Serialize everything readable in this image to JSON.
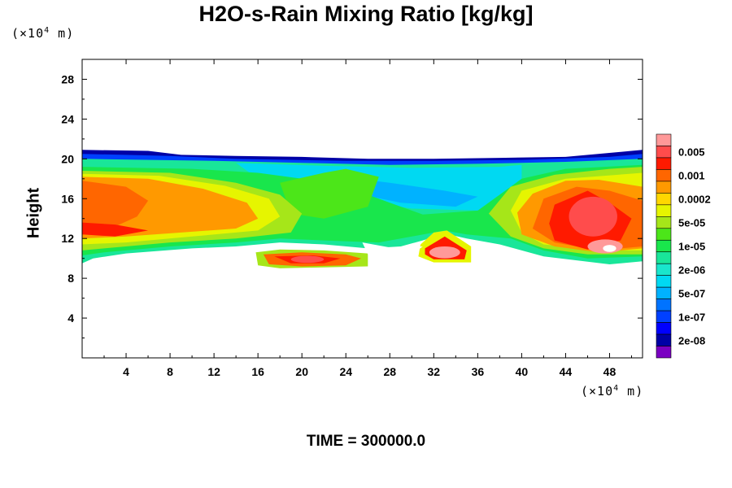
{
  "title": "H2O-s-Rain Mixing Ratio [kg/kg]",
  "footer": "TIME = 300000.0",
  "y_unit": {
    "prefix": "(×10",
    "exp": "4",
    "suffix": " m)"
  },
  "x_unit": {
    "prefix": "(×10",
    "exp": "4",
    "suffix": " m)"
  },
  "chart_data": {
    "type": "heatmap",
    "title": "H2O-s-Rain Mixing Ratio [kg/kg]",
    "xlabel": "",
    "ylabel": "Height",
    "x_unit": "×10^4 m",
    "y_unit": "×10^4 m",
    "xlim": [
      0,
      51
    ],
    "ylim": [
      0,
      30
    ],
    "x_ticks": [
      4,
      8,
      12,
      16,
      20,
      24,
      28,
      32,
      36,
      40,
      44,
      48
    ],
    "y_ticks": [
      4,
      8,
      12,
      16,
      20,
      24,
      28
    ],
    "colorbar": {
      "levels_top_to_bottom": [
        {
          "color": "#ff9999",
          "label": ""
        },
        {
          "color": "#ff4c4c",
          "label": "0.005"
        },
        {
          "color": "#ff1a00",
          "label": ""
        },
        {
          "color": "#ff6600",
          "label": "0.001"
        },
        {
          "color": "#ff9900",
          "label": ""
        },
        {
          "color": "#ffd700",
          "label": "0.0002"
        },
        {
          "color": "#e6f500",
          "label": ""
        },
        {
          "color": "#a6e619",
          "label": "5e-05"
        },
        {
          "color": "#4ce619",
          "label": ""
        },
        {
          "color": "#19e64c",
          "label": "1e-05"
        },
        {
          "color": "#19e699",
          "label": ""
        },
        {
          "color": "#19e6cc",
          "label": "2e-06"
        },
        {
          "color": "#00d9f2",
          "label": ""
        },
        {
          "color": "#00b2ff",
          "label": "5e-07"
        },
        {
          "color": "#0073ff",
          "label": ""
        },
        {
          "color": "#0040ff",
          "label": "1e-07"
        },
        {
          "color": "#0000ff",
          "label": ""
        },
        {
          "color": "#0000a6",
          "label": "2e-08"
        },
        {
          "color": "#7a00c2",
          "label": ""
        }
      ]
    },
    "regions": [
      {
        "name": "cloud layer",
        "x_range": [
          0,
          51
        ],
        "y_range": [
          9.5,
          21
        ],
        "dominant": "2e-06 to 0.005"
      },
      {
        "name": "left core",
        "x_range": [
          0,
          14
        ],
        "y_range": [
          10,
          19
        ],
        "dominant": "0.0002 to 0.001"
      },
      {
        "name": "right core",
        "x_range": [
          38,
          51
        ],
        "y_range": [
          9,
          19
        ],
        "dominant": "0.001 to 0.005"
      },
      {
        "name": "lower band",
        "x_range": [
          16,
          26
        ],
        "y_range": [
          9,
          10.5
        ],
        "dominant": "0.001 to 0.005"
      },
      {
        "name": "lower blob",
        "x_range": [
          30.5,
          35.5
        ],
        "y_range": [
          9.5,
          12
        ],
        "dominant": "0.001 to 0.005"
      }
    ]
  }
}
